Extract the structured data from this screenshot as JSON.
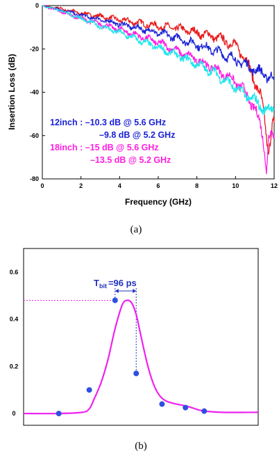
{
  "chart_data": [
    {
      "type": "line",
      "title": "",
      "xlabel": "Frequency (GHz)",
      "ylabel": "Insertion Loss (dB)",
      "xlim": [
        0,
        12
      ],
      "ylim": [
        -80,
        0
      ],
      "xticks": [
        "0",
        "2",
        "4",
        "6",
        "8",
        "10",
        "12"
      ],
      "yticks": [
        "0",
        "-20",
        "-40",
        "-60",
        "-80"
      ],
      "grid": false,
      "series": [
        {
          "color": "#e8191a",
          "x": [
            0,
            1,
            2,
            3,
            4,
            5,
            6,
            7,
            8,
            9,
            10,
            10.5,
            11,
            11.3,
            11.5,
            11.7,
            11.8,
            11.9,
            12
          ],
          "y": [
            0,
            -1.5,
            -3.5,
            -5,
            -6.5,
            -8,
            -9.5,
            -10.5,
            -12.5,
            -14.5,
            -18.5,
            -24,
            -35,
            -42,
            -52,
            -68,
            -62,
            -55,
            -54
          ]
        },
        {
          "color": "#1a22d6",
          "x": [
            0,
            1,
            2,
            3,
            4,
            5,
            6,
            7,
            8,
            9,
            10,
            11,
            12
          ],
          "y": [
            0,
            -2,
            -4.5,
            -6.5,
            -8.5,
            -10.5,
            -12.5,
            -15,
            -18,
            -21,
            -25,
            -29.5,
            -34
          ]
        },
        {
          "color": "#ff1fe0",
          "x": [
            0,
            1,
            2,
            3,
            4,
            5,
            6,
            7,
            8,
            9,
            10,
            10.5,
            11,
            11.3,
            11.5,
            11.6,
            11.7,
            11.8,
            12
          ],
          "y": [
            0,
            -3,
            -6,
            -8.5,
            -11,
            -14,
            -17,
            -21,
            -25,
            -29.5,
            -35,
            -40,
            -48,
            -55,
            -65,
            -78,
            -62,
            -60,
            -60
          ]
        },
        {
          "color": "#1ee6ec",
          "x": [
            0,
            1,
            2,
            3,
            4,
            5,
            6,
            7,
            8,
            9,
            10,
            11,
            11.5,
            12
          ],
          "y": [
            0,
            -2.5,
            -6,
            -9.5,
            -12.5,
            -16,
            -19.5,
            -23,
            -27,
            -31.5,
            -38,
            -44,
            -48,
            -48
          ]
        }
      ],
      "annotations": {
        "line1": "12inch : –10.3 dB @ 5.6 GHz",
        "line2": "–9.8 dB @ 5.2 GHz",
        "line3": "18inch : –15 dB @ 5.6 GHz",
        "line4": "–13.5 dB @ 5.2 GHz",
        "color_12inch": "#1a22d6",
        "color_18inch": "#ff1fe0"
      }
    },
    {
      "type": "line",
      "xlim": [
        0,
        10
      ],
      "ylim": [
        -0.05,
        0.7
      ],
      "yticks": [
        "0",
        "0.2",
        "0.4",
        "0.6"
      ],
      "grid": false,
      "tbit_value": "=96 ps",
      "tbit_main": "T",
      "tbit_sub": "bit",
      "line_color": "#ee22ee",
      "point_color": "#2f4fe0",
      "annotation_color": "#2233bb",
      "series": [
        {
          "x": [
            0,
            1.5,
            2.5,
            2.8,
            3.0,
            3.3,
            3.6,
            3.9,
            4.2,
            4.4,
            4.6,
            4.8,
            5.0,
            5.3,
            5.6,
            5.9,
            6.3,
            7.0,
            7.6,
            8.5,
            10
          ],
          "y": [
            0,
            0,
            0.005,
            0.02,
            0.06,
            0.13,
            0.23,
            0.36,
            0.46,
            0.48,
            0.47,
            0.42,
            0.33,
            0.2,
            0.11,
            0.065,
            0.045,
            0.03,
            0.012,
            0.005,
            0.005
          ]
        }
      ],
      "markers": {
        "x": [
          1.5,
          2.8,
          3.9,
          4.8,
          5.9,
          6.9,
          7.7
        ],
        "y": [
          0,
          0.1,
          0.48,
          0.17,
          0.04,
          0.025,
          0.01
        ]
      }
    }
  ],
  "captions": {
    "a": "(a)",
    "b": "(b)"
  }
}
